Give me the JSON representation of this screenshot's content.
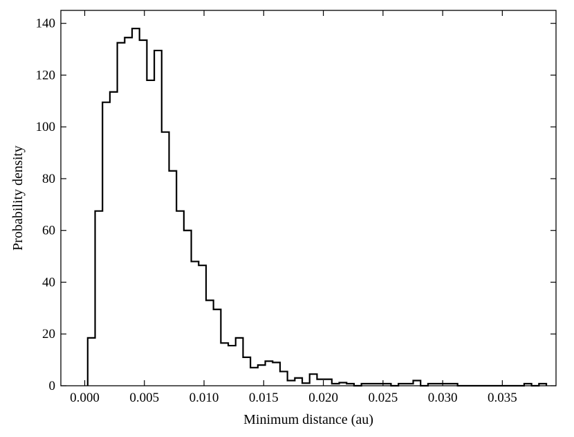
{
  "chart_data": {
    "type": "histogram",
    "title": "",
    "xlabel": "Minimum distance (au)",
    "ylabel": "Probability density",
    "xlim": [
      -0.002,
      0.0395
    ],
    "ylim": [
      0,
      145
    ],
    "xticks": [
      0.0,
      0.005,
      0.01,
      0.015,
      0.02,
      0.025,
      0.03,
      0.035
    ],
    "xtick_labels": [
      "0.000",
      "0.005",
      "0.010",
      "0.015",
      "0.020",
      "0.025",
      "0.030",
      "0.035"
    ],
    "yticks": [
      0,
      20,
      40,
      60,
      80,
      100,
      120,
      140
    ],
    "ytick_labels": [
      "0",
      "20",
      "40",
      "60",
      "80",
      "100",
      "120",
      "140"
    ],
    "grid": false,
    "legend": "none",
    "bin_width": 0.00062,
    "bin_start": 0.00025,
    "values": [
      18.5,
      67.5,
      109.5,
      113.5,
      132.5,
      134.5,
      138,
      133.5,
      118,
      129.5,
      98,
      83,
      67.5,
      60,
      48,
      46.5,
      33,
      29.5,
      16.5,
      15.5,
      18.5,
      11,
      7,
      8,
      9.5,
      9,
      5.5,
      2,
      3,
      1,
      4.5,
      2.5,
      2.5,
      0.8,
      1.2,
      0.8,
      0,
      0.8,
      0.8,
      0.8,
      0.8,
      0,
      0.8,
      0.8,
      2,
      0,
      0.8,
      0.8,
      0.8,
      0.8,
      0,
      0,
      0,
      0,
      0,
      0,
      0,
      0,
      0,
      0.8,
      0,
      0.8
    ]
  }
}
